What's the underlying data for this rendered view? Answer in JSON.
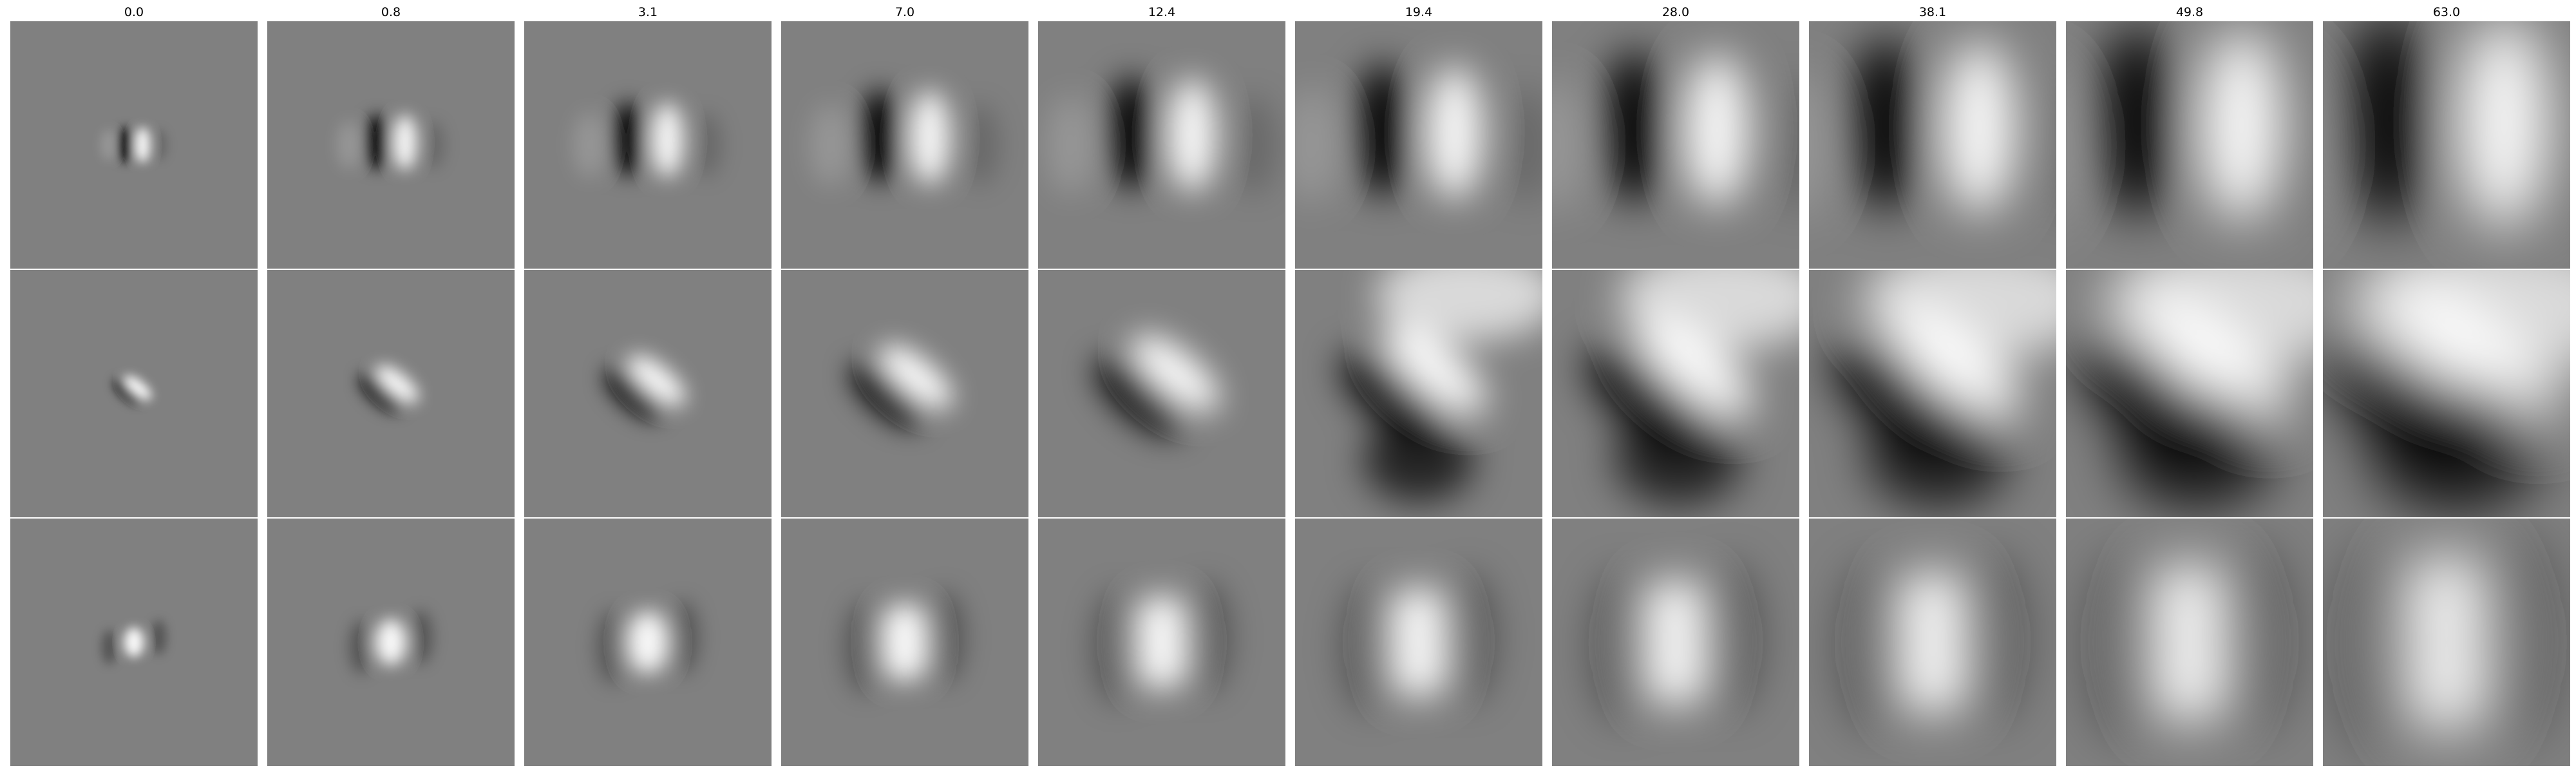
{
  "figure": {
    "column_titles": [
      "0.0",
      "0.8",
      "3.1",
      "7.0",
      "12.4",
      "19.4",
      "28.0",
      "38.1",
      "49.8",
      "63.0"
    ],
    "rows": 3,
    "colormap": "gray",
    "background_color": "#808080"
  }
}
